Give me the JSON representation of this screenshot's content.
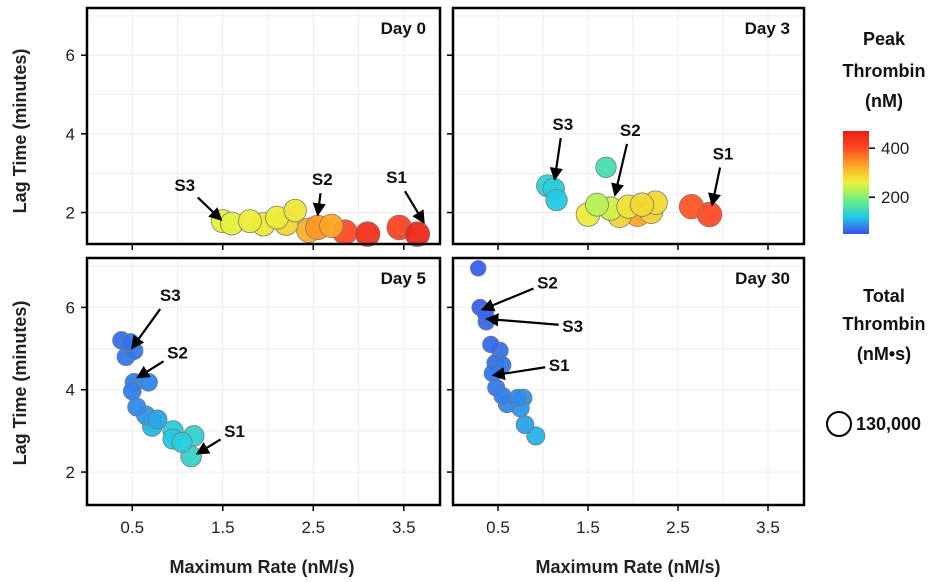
{
  "chart_data": {
    "type": "scatter",
    "xlabel": "Maximum Rate (nM/s)",
    "ylabel": "Lag Time (minutes)",
    "xlim": [
      0.0,
      3.9
    ],
    "ylim": [
      1.2,
      7.2
    ],
    "xticks": [
      0.5,
      1.5,
      2.5,
      3.5
    ],
    "xtick_labels": [
      "0.5",
      "1.5",
      "2.5",
      "3.5"
    ],
    "yticks": [
      2,
      4,
      6
    ],
    "ytick_labels": [
      "2",
      "4",
      "6"
    ],
    "grid": true,
    "color_legend": {
      "title_lines": [
        "Peak",
        "Thrombin",
        "(nM)"
      ],
      "range": [
        50,
        470
      ],
      "ticks": [
        200,
        400
      ],
      "tick_labels": [
        "200",
        "400"
      ],
      "stops": [
        "#3b4cf0",
        "#22c9e6",
        "#6ef07c",
        "#eaf23a",
        "#ffa526",
        "#ff4a26",
        "#e81e14"
      ]
    },
    "size_legend": {
      "title_lines": [
        "Total",
        "Thrombin",
        "(nM•s)"
      ],
      "value_label": "130,000"
    },
    "panels": [
      {
        "title": "Day 0",
        "points": [
          {
            "x": 1.5,
            "y": 1.78,
            "peak": 260,
            "total": 120000
          },
          {
            "x": 1.6,
            "y": 1.72,
            "peak": 255,
            "total": 120000
          },
          {
            "x": 1.8,
            "y": 1.78,
            "peak": 265,
            "total": 120000
          },
          {
            "x": 1.95,
            "y": 1.7,
            "peak": 270,
            "total": 123000
          },
          {
            "x": 2.1,
            "y": 1.87,
            "peak": 265,
            "total": 120000
          },
          {
            "x": 2.2,
            "y": 1.72,
            "peak": 285,
            "total": 127000
          },
          {
            "x": 2.3,
            "y": 2.05,
            "peak": 270,
            "total": 115000
          },
          {
            "x": 2.45,
            "y": 1.55,
            "peak": 320,
            "total": 135000
          },
          {
            "x": 2.55,
            "y": 1.62,
            "peak": 340,
            "total": 135000
          },
          {
            "x": 2.7,
            "y": 1.66,
            "peak": 330,
            "total": 125000
          },
          {
            "x": 2.85,
            "y": 1.5,
            "peak": 400,
            "total": 138000
          },
          {
            "x": 3.1,
            "y": 1.45,
            "peak": 440,
            "total": 138000
          },
          {
            "x": 3.45,
            "y": 1.62,
            "peak": 410,
            "total": 138000
          },
          {
            "x": 3.65,
            "y": 1.45,
            "peak": 455,
            "total": 138000
          }
        ],
        "annotations": [
          {
            "text": "S3",
            "label_x": 1.08,
            "label_y": 2.7,
            "arrow_x": 1.48,
            "arrow_y": 1.82
          },
          {
            "text": "S2",
            "label_x": 2.6,
            "label_y": 2.85,
            "arrow_x": 2.55,
            "arrow_y": 1.95
          },
          {
            "text": "S1",
            "label_x": 3.42,
            "label_y": 2.9,
            "arrow_x": 3.72,
            "arrow_y": 1.75
          }
        ]
      },
      {
        "title": "Day 3",
        "points": [
          {
            "x": 1.05,
            "y": 2.68,
            "peak": 130,
            "total": 110000
          },
          {
            "x": 1.12,
            "y": 2.6,
            "peak": 125,
            "total": 105000
          },
          {
            "x": 1.15,
            "y": 2.32,
            "peak": 120,
            "total": 105000
          },
          {
            "x": 1.5,
            "y": 1.95,
            "peak": 265,
            "total": 128000
          },
          {
            "x": 1.6,
            "y": 2.2,
            "peak": 230,
            "total": 120000
          },
          {
            "x": 1.75,
            "y": 2.1,
            "peak": 245,
            "total": 125000
          },
          {
            "x": 1.7,
            "y": 3.15,
            "peak": 155,
            "total": 95000
          },
          {
            "x": 1.85,
            "y": 1.92,
            "peak": 285,
            "total": 128000
          },
          {
            "x": 1.95,
            "y": 2.15,
            "peak": 275,
            "total": 125000
          },
          {
            "x": 2.05,
            "y": 1.95,
            "peak": 330,
            "total": 130000
          },
          {
            "x": 2.1,
            "y": 2.2,
            "peak": 285,
            "total": 125000
          },
          {
            "x": 2.2,
            "y": 2.02,
            "peak": 290,
            "total": 127000
          },
          {
            "x": 2.25,
            "y": 2.25,
            "peak": 280,
            "total": 127000
          },
          {
            "x": 2.65,
            "y": 2.15,
            "peak": 390,
            "total": 135000
          },
          {
            "x": 2.85,
            "y": 1.95,
            "peak": 400,
            "total": 138000
          }
        ],
        "annotations": [
          {
            "text": "S3",
            "label_x": 1.22,
            "label_y": 4.25,
            "arrow_x": 1.13,
            "arrow_y": 2.85
          },
          {
            "text": "S2",
            "label_x": 1.97,
            "label_y": 4.1,
            "arrow_x": 1.8,
            "arrow_y": 2.45
          },
          {
            "text": "S1",
            "label_x": 3.0,
            "label_y": 3.5,
            "arrow_x": 2.88,
            "arrow_y": 2.2
          }
        ]
      },
      {
        "title": "Day 5",
        "points": [
          {
            "x": 0.38,
            "y": 5.2,
            "peak": 70,
            "total": 70000
          },
          {
            "x": 0.48,
            "y": 5.15,
            "peak": 72,
            "total": 70000
          },
          {
            "x": 0.43,
            "y": 4.8,
            "peak": 75,
            "total": 72000
          },
          {
            "x": 0.52,
            "y": 4.95,
            "peak": 75,
            "total": 72000
          },
          {
            "x": 0.52,
            "y": 4.18,
            "peak": 80,
            "total": 72000
          },
          {
            "x": 0.68,
            "y": 4.18,
            "peak": 82,
            "total": 72000
          },
          {
            "x": 0.5,
            "y": 3.97,
            "peak": 80,
            "total": 72000
          },
          {
            "x": 0.55,
            "y": 3.58,
            "peak": 85,
            "total": 75000
          },
          {
            "x": 0.65,
            "y": 3.38,
            "peak": 95,
            "total": 80000
          },
          {
            "x": 0.72,
            "y": 3.22,
            "peak": 100,
            "total": 85000
          },
          {
            "x": 0.78,
            "y": 3.28,
            "peak": 100,
            "total": 80000
          },
          {
            "x": 0.72,
            "y": 3.1,
            "peak": 110,
            "total": 85000
          },
          {
            "x": 0.95,
            "y": 3.0,
            "peak": 125,
            "total": 95000
          },
          {
            "x": 0.95,
            "y": 2.8,
            "peak": 120,
            "total": 92000
          },
          {
            "x": 1.05,
            "y": 2.72,
            "peak": 125,
            "total": 92000
          },
          {
            "x": 1.18,
            "y": 2.88,
            "peak": 135,
            "total": 95000
          },
          {
            "x": 1.15,
            "y": 2.38,
            "peak": 140,
            "total": 98000
          }
        ],
        "annotations": [
          {
            "text": "S3",
            "label_x": 0.92,
            "label_y": 6.3,
            "arrow_x": 0.5,
            "arrow_y": 5.02
          },
          {
            "text": "S2",
            "label_x": 1.0,
            "label_y": 4.9,
            "arrow_x": 0.56,
            "arrow_y": 4.3
          },
          {
            "text": "S1",
            "label_x": 1.63,
            "label_y": 3.0,
            "arrow_x": 1.22,
            "arrow_y": 2.45
          }
        ]
      },
      {
        "title": "Day 30",
        "points": [
          {
            "x": 0.28,
            "y": 6.95,
            "peak": 60,
            "total": 55000
          },
          {
            "x": 0.3,
            "y": 6.0,
            "peak": 62,
            "total": 60000
          },
          {
            "x": 0.36,
            "y": 5.85,
            "peak": 64,
            "total": 60000
          },
          {
            "x": 0.37,
            "y": 5.65,
            "peak": 66,
            "total": 62000
          },
          {
            "x": 0.42,
            "y": 5.1,
            "peak": 68,
            "total": 62000
          },
          {
            "x": 0.52,
            "y": 4.95,
            "peak": 72,
            "total": 65000
          },
          {
            "x": 0.47,
            "y": 4.65,
            "peak": 72,
            "total": 65000
          },
          {
            "x": 0.55,
            "y": 4.6,
            "peak": 75,
            "total": 65000
          },
          {
            "x": 0.44,
            "y": 4.4,
            "peak": 74,
            "total": 65000
          },
          {
            "x": 0.48,
            "y": 4.05,
            "peak": 76,
            "total": 67000
          },
          {
            "x": 0.55,
            "y": 3.85,
            "peak": 80,
            "total": 67000
          },
          {
            "x": 0.6,
            "y": 3.65,
            "peak": 84,
            "total": 68000
          },
          {
            "x": 0.72,
            "y": 3.8,
            "peak": 86,
            "total": 68000
          },
          {
            "x": 0.78,
            "y": 3.8,
            "peak": 88,
            "total": 70000
          },
          {
            "x": 0.75,
            "y": 3.55,
            "peak": 92,
            "total": 70000
          },
          {
            "x": 0.8,
            "y": 3.15,
            "peak": 98,
            "total": 72000
          },
          {
            "x": 0.92,
            "y": 2.88,
            "peak": 108,
            "total": 75000
          }
        ],
        "annotations": [
          {
            "text": "S2",
            "label_x": 1.05,
            "label_y": 6.6,
            "arrow_x": 0.33,
            "arrow_y": 5.95
          },
          {
            "text": "S3",
            "label_x": 1.33,
            "label_y": 5.55,
            "arrow_x": 0.38,
            "arrow_y": 5.72
          },
          {
            "text": "S1",
            "label_x": 1.18,
            "label_y": 4.6,
            "arrow_x": 0.45,
            "arrow_y": 4.35
          }
        ]
      }
    ]
  }
}
